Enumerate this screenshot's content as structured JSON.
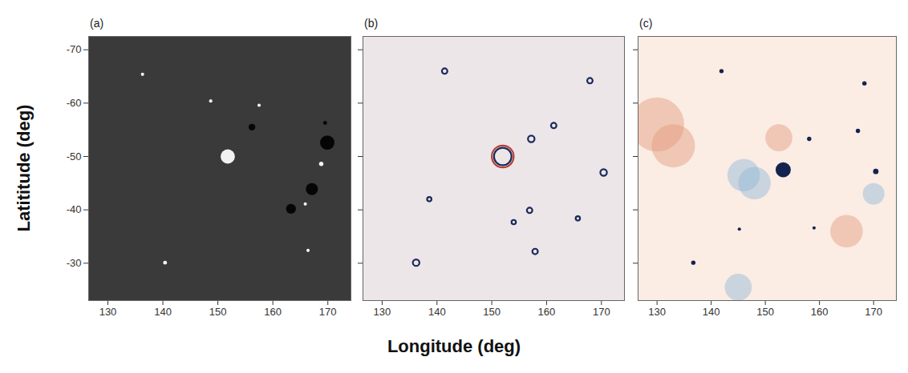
{
  "chart_data": {
    "type": "scatter",
    "xlabel": "Longitude (deg)",
    "ylabel": "Latititude (deg)",
    "xlim": [
      126.5,
      174.2
    ],
    "ylim": [
      -72.5,
      -23
    ],
    "xticks": [
      130,
      140,
      150,
      160,
      170
    ],
    "yticks": [
      -70,
      -60,
      -50,
      -40,
      -30
    ],
    "panels": [
      {
        "title": "(a)",
        "color": "#3a3a3a",
        "tick_labels": true,
        "series": [
          {
            "color": "#f2f2f2",
            "marker": "disc",
            "x": [
              151.8,
              168.8,
              157.5,
              148.7,
              136.3,
              166.4,
              140.4,
              165.9
            ],
            "y": [
              -50,
              -48.6,
              -59.6,
              -60.4,
              -65.4,
              -32.4,
              -30.1,
              -41.1
            ],
            "size": [
              1.3,
              0.4,
              0.3,
              0.3,
              0.3,
              0.3,
              0.35,
              0.3
            ]
          },
          {
            "color": "#050505",
            "marker": "disc",
            "x": [
              169.9,
              167.1,
              163.3,
              156.2,
              169.5
            ],
            "y": [
              -52.6,
              -43.9,
              -40.2,
              -55.5,
              -56.3
            ],
            "size": [
              1.3,
              1.1,
              0.9,
              0.6,
              0.35
            ]
          }
        ]
      },
      {
        "title": "(b)",
        "color": "#ece6e8",
        "tick_labels": "x",
        "series": [
          {
            "color": "#b5403a",
            "marker": "ring",
            "x": [
              152
            ],
            "y": [
              -50
            ],
            "size": [
              2.0
            ]
          },
          {
            "color": "#1a2a5a",
            "marker": "ring",
            "x": [
              152,
              157.2,
              141.4,
              167.9,
              161.3,
              170.4,
              156.9,
              157.9,
              136.2,
              138.6,
              154,
              165.7
            ],
            "y": [
              -50,
              -53.3,
              -66,
              -64.2,
              -55.8,
              -47,
              -39.9,
              -32.2,
              -30.1,
              -42,
              -37.7,
              -38.4
            ],
            "size": [
              1.6,
              0.6,
              0.5,
              0.5,
              0.5,
              0.6,
              0.5,
              0.5,
              0.6,
              0.4,
              0.4,
              0.4
            ]
          }
        ]
      },
      {
        "title": "(c)",
        "color": "#fbece4",
        "tick_labels": "x",
        "series": [
          {
            "color": "#e39a7a",
            "marker": "halo",
            "x": [
              130,
              133,
              152.5,
              165
            ],
            "y": [
              -56,
              -52,
              -53.5,
              -36
            ],
            "size": [
              5,
              4,
              2.5,
              3
            ]
          },
          {
            "color": "#8fb8d8",
            "marker": "halo",
            "x": [
              146,
              148,
              145,
              170
            ],
            "y": [
              -46.5,
              -45,
              -25.5,
              -43
            ],
            "size": [
              3,
              3,
              2.5,
              2
            ]
          },
          {
            "color": "#14224f",
            "marker": "disc",
            "x": [
              153.3,
              141.9,
              168.3,
              167.1,
              158.1,
              170.4,
              159,
              136.7,
              145.2
            ],
            "y": [
              -47.5,
              -66,
              -63.7,
              -54.8,
              -53.3,
              -47.2,
              -36.6,
              -30.1,
              -36.4
            ],
            "size": [
              1.4,
              0.4,
              0.4,
              0.4,
              0.4,
              0.5,
              0.3,
              0.4,
              0.3
            ]
          }
        ]
      }
    ]
  }
}
